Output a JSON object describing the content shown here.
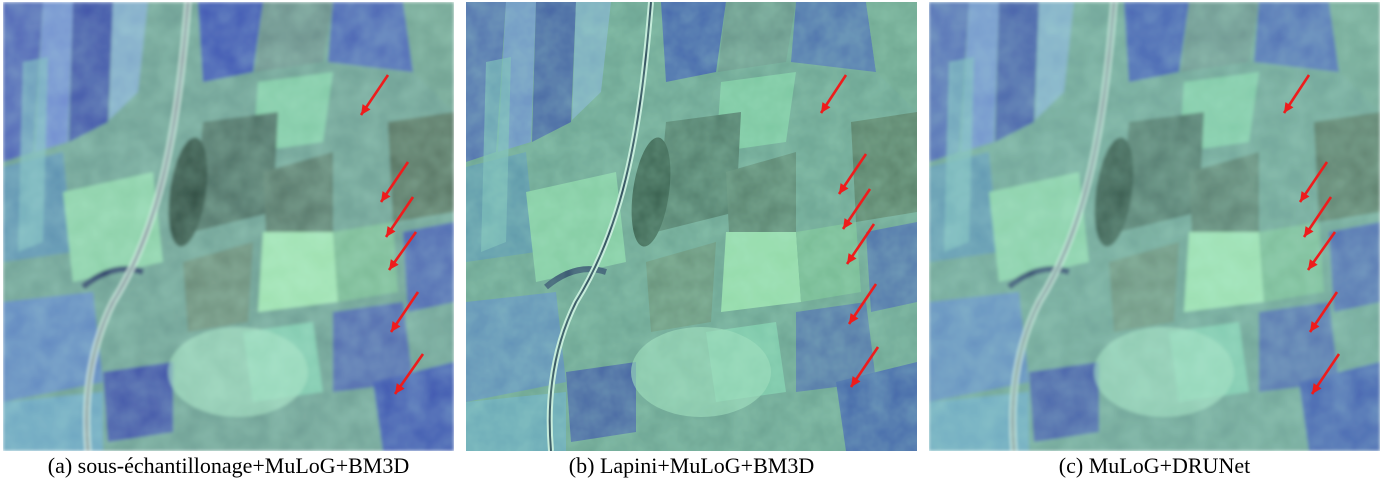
{
  "figure": {
    "panels": [
      {
        "caption": "(a) sous-échantillonage+MuLoG+BM3D",
        "variant": "a"
      },
      {
        "caption": "(b) Lapini+MuLoG+BM3D",
        "variant": "b"
      },
      {
        "caption": "(c) MuLoG+DRUNet",
        "variant": "c"
      }
    ],
    "arrow_color": "#ee1c1c"
  }
}
